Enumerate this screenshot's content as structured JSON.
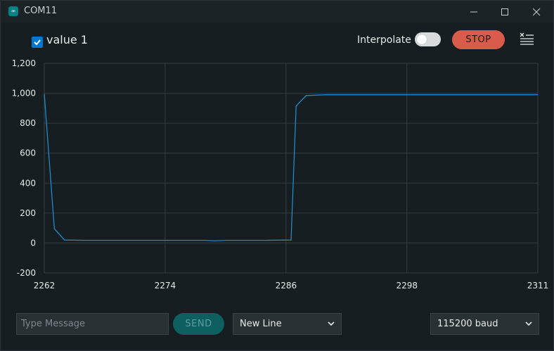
{
  "window": {
    "title": "COM11",
    "app_icon": "∞"
  },
  "toolbar": {
    "series_checked": true,
    "series_label": "value 1",
    "interpolate_label": "Interpolate",
    "interpolate_on": false,
    "stop_label": "STOP",
    "clear_icon": "clear-all-icon"
  },
  "footer": {
    "message_placeholder": "Type Message",
    "send_label": "SEND",
    "line_ending": "New Line",
    "baud_rate": "115200 baud"
  },
  "colors": {
    "line": "#1e8ac8",
    "stop": "#d85b4b",
    "send": "#0d5f60",
    "checkbox": "#0078d4"
  },
  "chart_data": {
    "type": "line",
    "title": "",
    "xlabel": "",
    "ylabel": "",
    "xlim": [
      2262,
      2311
    ],
    "ylim": [
      -200,
      1200
    ],
    "x_ticks": [
      2262,
      2274,
      2286,
      2298,
      2311
    ],
    "y_ticks": [
      -200,
      0,
      200,
      400,
      600,
      800,
      1000,
      1200
    ],
    "y_tick_labels": [
      "-200",
      "0",
      "200",
      "400",
      "600",
      "800",
      "1,000",
      "1,200"
    ],
    "grid": true,
    "series": [
      {
        "name": "value 1",
        "x": [
          2262,
          2263,
          2264,
          2266,
          2270,
          2274,
          2278,
          2279,
          2280,
          2284,
          2286.5,
          2287,
          2288,
          2290,
          2295,
          2300,
          2305,
          2311
        ],
        "y": [
          995,
          95,
          20,
          18,
          18,
          18,
          18,
          14,
          18,
          18,
          20,
          915,
          985,
          990,
          990,
          990,
          990,
          990
        ]
      }
    ]
  }
}
